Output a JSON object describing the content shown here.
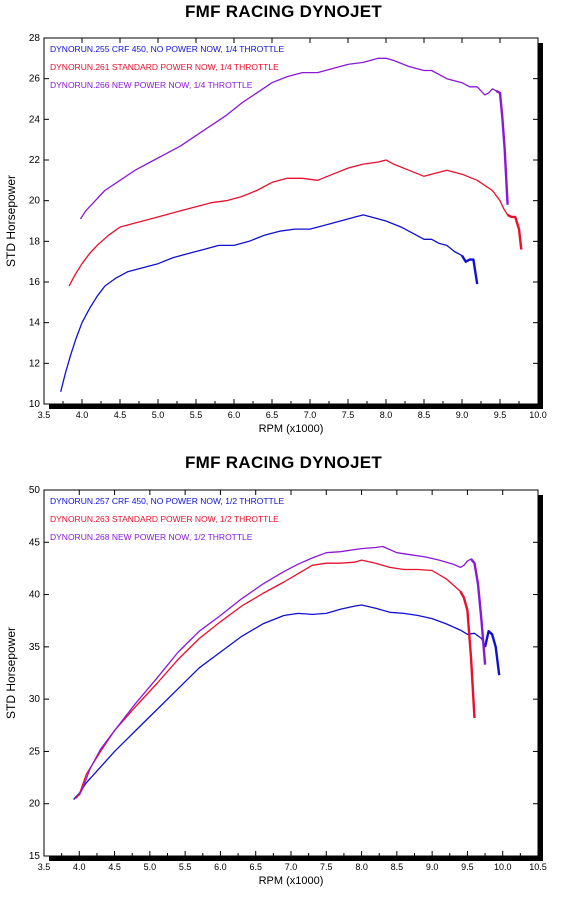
{
  "colors": {
    "blue": "#1010d0",
    "red": "#e8102c",
    "purple": "#8a18d8"
  },
  "chart_data": [
    {
      "type": "line",
      "title": "FMF RACING DYNOJET",
      "xlabel": "RPM (x1000)",
      "ylabel": "STD Horsepower",
      "xlim": [
        3.5,
        10.0
      ],
      "ylim": [
        10,
        28
      ],
      "x_ticks": [
        3.5,
        4.0,
        4.5,
        5.0,
        5.5,
        6.0,
        6.5,
        7.0,
        7.5,
        8.0,
        8.5,
        9.0,
        9.5,
        10.0
      ],
      "x_tick_labels": [
        "3.5",
        "4.0",
        "4.5",
        "5.0",
        "5.5",
        "6.0",
        "6.5",
        "7.0",
        "7.5",
        "8.0",
        "8.5",
        "9.0",
        "9.5",
        "10.0"
      ],
      "y_ticks": [
        10,
        12,
        14,
        16,
        18,
        20,
        22,
        24,
        26,
        28
      ],
      "grid": false,
      "legend": "top-left",
      "series": [
        {
          "name": "DYNORUN.255 CRF 450, NO POWER NOW, 1/4 THROTTLE",
          "color": "#1010d0",
          "x": [
            3.72,
            3.78,
            3.85,
            3.92,
            4.0,
            4.1,
            4.2,
            4.3,
            4.45,
            4.6,
            4.8,
            5.0,
            5.2,
            5.4,
            5.6,
            5.8,
            6.0,
            6.2,
            6.4,
            6.6,
            6.8,
            7.0,
            7.2,
            7.4,
            7.6,
            7.7,
            7.8,
            8.0,
            8.2,
            8.4,
            8.5,
            8.6,
            8.7,
            8.8,
            8.9,
            9.0,
            9.05,
            9.1,
            9.15,
            9.2
          ],
          "y": [
            10.6,
            11.5,
            12.4,
            13.2,
            14.0,
            14.7,
            15.3,
            15.8,
            16.2,
            16.5,
            16.7,
            16.9,
            17.2,
            17.4,
            17.6,
            17.8,
            17.8,
            18.0,
            18.3,
            18.5,
            18.6,
            18.6,
            18.8,
            19.0,
            19.2,
            19.3,
            19.2,
            19.0,
            18.7,
            18.3,
            18.1,
            18.1,
            17.9,
            17.8,
            17.5,
            17.3,
            17.0,
            17.1,
            17.1,
            15.9
          ]
        },
        {
          "name": "DYNORUN.261 STANDARD POWER NOW, 1/4 THROTTLE",
          "color": "#e8102c",
          "x": [
            3.83,
            3.9,
            4.0,
            4.1,
            4.2,
            4.35,
            4.5,
            4.7,
            4.9,
            5.1,
            5.3,
            5.5,
            5.7,
            5.9,
            6.1,
            6.3,
            6.5,
            6.7,
            6.9,
            7.1,
            7.3,
            7.5,
            7.7,
            7.9,
            8.0,
            8.1,
            8.3,
            8.5,
            8.6,
            8.7,
            8.8,
            8.9,
            9.0,
            9.2,
            9.4,
            9.5,
            9.55,
            9.6,
            9.65,
            9.7,
            9.75,
            9.78
          ],
          "y": [
            15.8,
            16.3,
            16.9,
            17.4,
            17.8,
            18.3,
            18.7,
            18.9,
            19.1,
            19.3,
            19.5,
            19.7,
            19.9,
            20.0,
            20.2,
            20.5,
            20.9,
            21.1,
            21.1,
            21.0,
            21.3,
            21.6,
            21.8,
            21.9,
            22.0,
            21.8,
            21.5,
            21.2,
            21.3,
            21.4,
            21.5,
            21.4,
            21.3,
            21.0,
            20.5,
            20.0,
            19.6,
            19.3,
            19.2,
            19.2,
            18.6,
            17.6
          ]
        },
        {
          "name": "DYNORUN.266 NEW POWER NOW, 1/4 THROTTLE",
          "color": "#8a18d8",
          "x": [
            3.98,
            4.05,
            4.15,
            4.3,
            4.5,
            4.7,
            4.9,
            5.1,
            5.3,
            5.5,
            5.7,
            5.9,
            6.1,
            6.3,
            6.5,
            6.7,
            6.9,
            7.1,
            7.3,
            7.5,
            7.7,
            7.9,
            8.0,
            8.1,
            8.3,
            8.5,
            8.6,
            8.7,
            8.8,
            8.9,
            9.0,
            9.1,
            9.2,
            9.3,
            9.35,
            9.4,
            9.45,
            9.5,
            9.53,
            9.56,
            9.6
          ],
          "y": [
            19.1,
            19.5,
            19.9,
            20.5,
            21.0,
            21.5,
            21.9,
            22.3,
            22.7,
            23.2,
            23.7,
            24.2,
            24.8,
            25.3,
            25.8,
            26.1,
            26.3,
            26.3,
            26.5,
            26.7,
            26.8,
            27.0,
            27.0,
            26.9,
            26.6,
            26.4,
            26.4,
            26.2,
            26.0,
            25.9,
            25.8,
            25.6,
            25.6,
            25.2,
            25.3,
            25.5,
            25.4,
            25.3,
            24.1,
            22.6,
            19.8
          ]
        }
      ]
    },
    {
      "type": "line",
      "title": "FMF RACING DYNOJET",
      "xlabel": "RPM (x1000)",
      "ylabel": "STD Horsepower",
      "xlim": [
        3.5,
        10.5
      ],
      "ylim": [
        15,
        50
      ],
      "x_ticks": [
        3.5,
        4.0,
        4.5,
        5.0,
        5.5,
        6.0,
        6.5,
        7.0,
        7.5,
        8.0,
        8.5,
        9.0,
        9.5,
        10.0,
        10.5
      ],
      "x_tick_labels": [
        "3.5",
        "4.0",
        "4.5",
        "5.0",
        "5.5",
        "6.0",
        "6.5",
        "7.0",
        "7.5",
        "8.0",
        "8.5",
        "9.0",
        "9.5",
        "10.0",
        "10.5"
      ],
      "y_ticks": [
        15,
        20,
        25,
        30,
        35,
        40,
        45,
        50
      ],
      "grid": false,
      "legend": "top-left",
      "series": [
        {
          "name": "DYNORUN.257 CRF 450, NO POWER NOW, 1/2 THROTTLE",
          "color": "#1010d0",
          "x": [
            3.92,
            4.0,
            4.1,
            4.3,
            4.5,
            4.8,
            5.1,
            5.4,
            5.7,
            6.0,
            6.3,
            6.6,
            6.9,
            7.1,
            7.3,
            7.5,
            7.7,
            7.9,
            8.0,
            8.2,
            8.4,
            8.6,
            8.8,
            9.0,
            9.2,
            9.4,
            9.5,
            9.6,
            9.7,
            9.75,
            9.8,
            9.85,
            9.9,
            9.95
          ],
          "y": [
            20.4,
            21.0,
            22.0,
            23.5,
            25.0,
            27.0,
            29.0,
            31.0,
            33.0,
            34.5,
            36.0,
            37.2,
            38.0,
            38.2,
            38.1,
            38.2,
            38.6,
            38.9,
            39.0,
            38.7,
            38.3,
            38.2,
            38.0,
            37.7,
            37.2,
            36.6,
            36.2,
            36.3,
            35.8,
            35.0,
            36.5,
            36.2,
            35.0,
            32.3
          ]
        },
        {
          "name": "DYNORUN.263 STANDARD POWER NOW, 1/2 THROTTLE",
          "color": "#e8102c",
          "x": [
            3.95,
            4.0,
            4.1,
            4.3,
            4.5,
            4.8,
            5.1,
            5.4,
            5.7,
            6.0,
            6.3,
            6.6,
            6.9,
            7.1,
            7.3,
            7.5,
            7.7,
            7.9,
            8.0,
            8.2,
            8.4,
            8.6,
            8.8,
            9.0,
            9.2,
            9.4,
            9.45,
            9.5,
            9.55,
            9.6
          ],
          "y": [
            20.5,
            20.9,
            22.8,
            25.0,
            27.0,
            29.3,
            31.5,
            33.8,
            35.8,
            37.4,
            38.9,
            40.1,
            41.2,
            42.0,
            42.8,
            43.0,
            43.0,
            43.1,
            43.3,
            43.0,
            42.6,
            42.4,
            42.4,
            42.3,
            41.5,
            40.3,
            39.7,
            38.5,
            34.0,
            28.2
          ]
        },
        {
          "name": "DYNORUN.268 NEW POWER NOW, 1/2 THROTTLE",
          "color": "#8a18d8",
          "x": [
            4.0,
            4.05,
            4.15,
            4.3,
            4.5,
            4.8,
            5.1,
            5.4,
            5.7,
            6.0,
            6.3,
            6.6,
            6.9,
            7.1,
            7.3,
            7.5,
            7.7,
            7.9,
            8.0,
            8.2,
            8.3,
            8.5,
            8.7,
            8.9,
            9.1,
            9.3,
            9.4,
            9.45,
            9.5,
            9.55,
            9.6,
            9.65,
            9.7,
            9.75
          ],
          "y": [
            20.8,
            21.5,
            23.3,
            25.2,
            27.0,
            29.6,
            32.0,
            34.5,
            36.5,
            38.0,
            39.6,
            41.0,
            42.2,
            42.9,
            43.5,
            44.0,
            44.1,
            44.3,
            44.4,
            44.5,
            44.6,
            44.0,
            43.8,
            43.6,
            43.3,
            42.9,
            42.6,
            42.8,
            43.2,
            43.4,
            43.0,
            41.0,
            37.5,
            33.3
          ]
        }
      ]
    }
  ]
}
